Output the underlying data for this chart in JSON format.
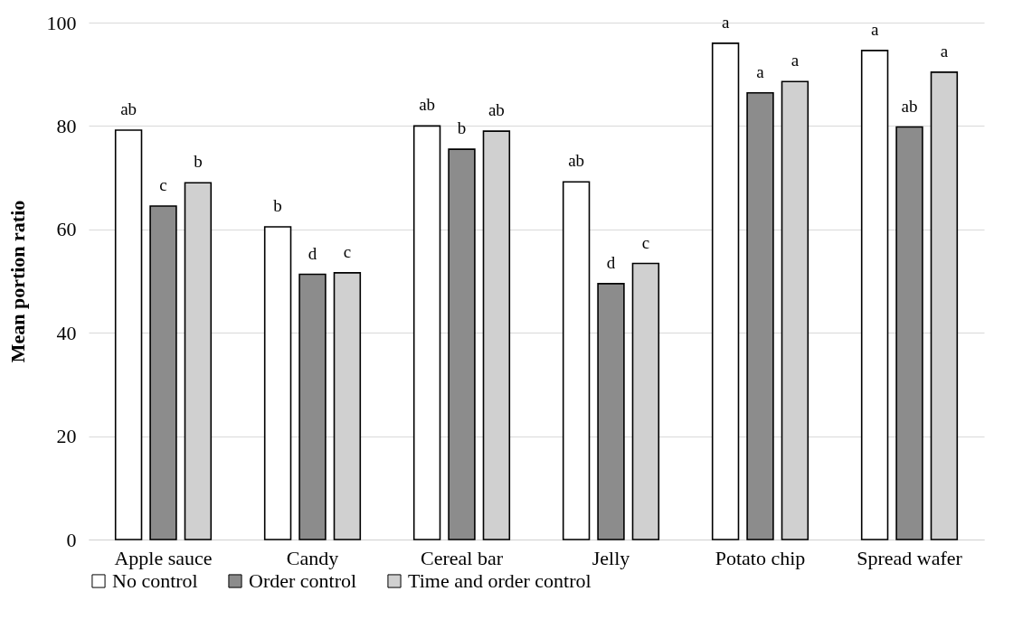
{
  "chart_data": {
    "type": "bar",
    "ylabel": "Mean portion ratio",
    "categories": [
      "Apple sauce",
      "Candy",
      "Cereal bar",
      "Jelly",
      "Potato chip",
      "Spread wafer"
    ],
    "series": [
      {
        "name": "No control",
        "color": "#ffffff",
        "values": [
          79.2,
          60.5,
          80.0,
          69.2,
          96.0,
          94.6
        ],
        "value_labels": [
          "ab",
          "b",
          "ab",
          "ab",
          "a",
          "a"
        ]
      },
      {
        "name": "Order control",
        "color": "#8c8c8c",
        "values": [
          64.5,
          51.3,
          75.5,
          49.5,
          86.4,
          79.8
        ],
        "value_labels": [
          "c",
          "d",
          "b",
          "d",
          "a",
          "ab"
        ]
      },
      {
        "name": "Time and order control",
        "color": "#d0d0d0",
        "values": [
          69.0,
          51.6,
          79.0,
          53.4,
          88.6,
          90.4
        ],
        "value_labels": [
          "b",
          "c",
          "ab",
          "c",
          "a",
          "a"
        ]
      }
    ],
    "ylim": [
      0,
      100
    ],
    "yticks": [
      0,
      20,
      40,
      60,
      80,
      100
    ],
    "grid": "y",
    "legend": "bottom"
  }
}
